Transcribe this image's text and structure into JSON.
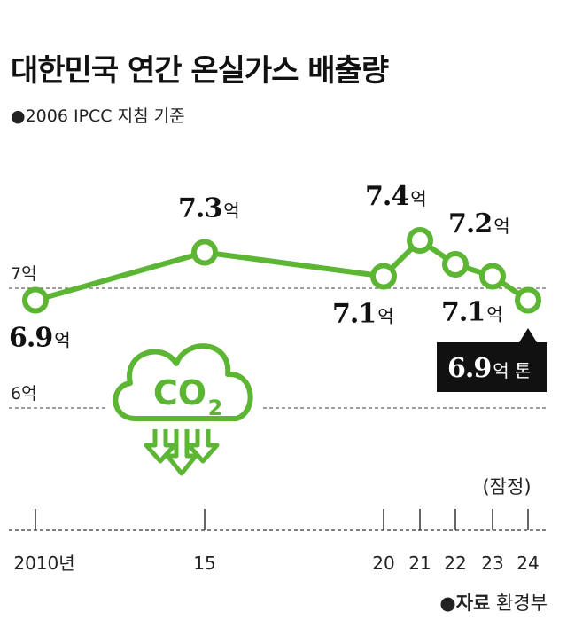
{
  "title": "대한민국 연간 온실가스 배출량",
  "subtitle": "●2006 IPCC 지침 기준",
  "source": {
    "bullet": "●",
    "label": "자료",
    "name": "환경부"
  },
  "icon": "co2-cloud-icon",
  "colors": {
    "line": "#5cb533",
    "callout": "#111111",
    "text": "#111111"
  },
  "chart_data": {
    "type": "line",
    "title": "대한민국 연간 온실가스 배출량",
    "unit": "억",
    "xlabel": "",
    "ylabel": "",
    "ylim": [
      5.5,
      7.6
    ],
    "x": [
      2010,
      2015,
      2020,
      2021,
      2022,
      2023,
      2024
    ],
    "x_tick_labels": [
      "2010년",
      "15",
      "20",
      "21",
      "22",
      "23",
      "24"
    ],
    "values": [
      6.9,
      7.3,
      7.1,
      7.4,
      7.2,
      7.1,
      6.9
    ],
    "value_labels": [
      {
        "num": "6.9",
        "unit": "억"
      },
      {
        "num": "7.3",
        "unit": "억"
      },
      {
        "num": "7.1",
        "unit": "억"
      },
      {
        "num": "7.4",
        "unit": "억"
      },
      {
        "num": "7.2",
        "unit": "억"
      },
      {
        "num": "7.1",
        "unit": "억"
      },
      {
        "num": "6.9",
        "unit": "억 톤"
      }
    ],
    "gridlines": [
      {
        "value": 7,
        "label": "7억"
      },
      {
        "value": 6,
        "label": "6억"
      }
    ],
    "annotation": "(잠정)"
  }
}
